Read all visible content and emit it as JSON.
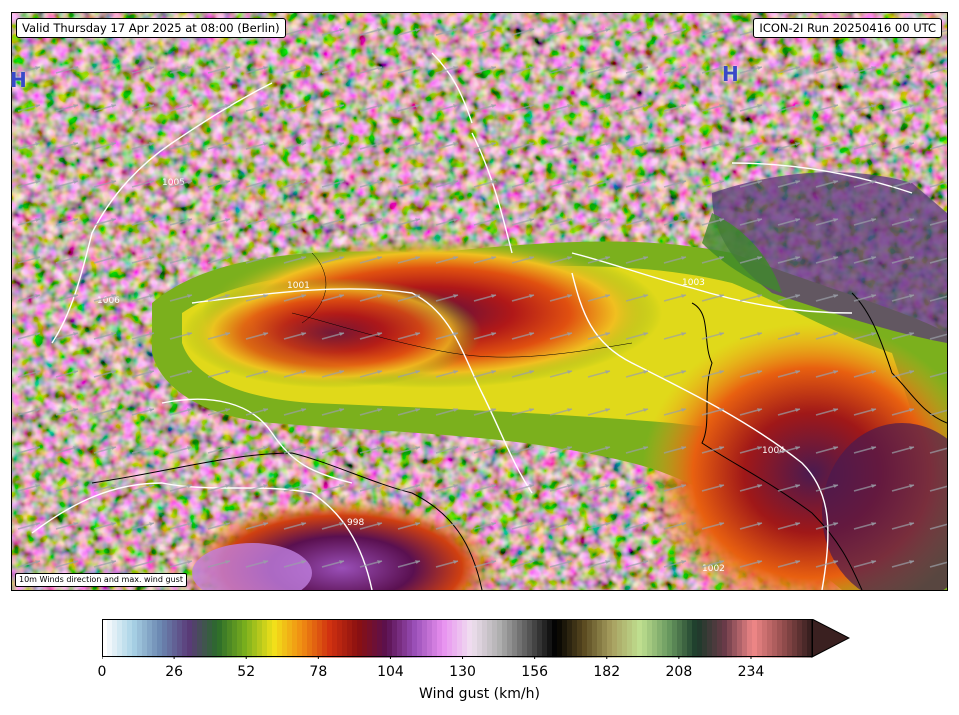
{
  "header": {
    "valid_time": "Valid Thursday 17 Apr 2025 at 08:00 (Berlin)",
    "model_run": "ICON-2I Run 20250416 00 UTC"
  },
  "map": {
    "note": "10m Winds direction and max. wind gust",
    "high_labels": [
      "H",
      "H"
    ],
    "isobar_labels": [
      "1005",
      "1001",
      "1003",
      "1004",
      "1002",
      "1006",
      "998"
    ]
  },
  "colorbar": {
    "title": "Wind gust (km/h)",
    "ticks": [
      "0",
      "26",
      "52",
      "78",
      "104",
      "130",
      "156",
      "182",
      "208",
      "234"
    ],
    "tick_values": [
      0,
      26,
      52,
      78,
      104,
      130,
      156,
      182,
      208,
      234
    ],
    "min": 0,
    "max": 256,
    "extend": "max",
    "colors": [
      "#ffffff",
      "#a9d3e6",
      "#6a86b0",
      "#5a3a78",
      "#2a6b2a",
      "#7bb01d",
      "#f2e11a",
      "#f08c12",
      "#d03010",
      "#8a1010",
      "#5a1050",
      "#9a4fb8",
      "#e890f0",
      "#f0e0f0",
      "#b0b0b0",
      "#5a5a5a",
      "#000000",
      "#5a4a20",
      "#a8a060",
      "#c0e090",
      "#6a9a60",
      "#1a3a2a",
      "#6a3a48",
      "#f08888",
      "#9a5050",
      "#3a2020"
    ]
  },
  "colors": {
    "pressure_high": "#3949c8",
    "isobar": "#ffffff",
    "coast": "#000000"
  }
}
